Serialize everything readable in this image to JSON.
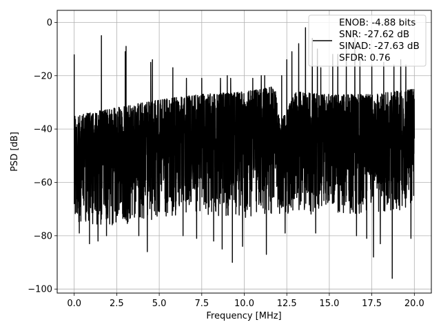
{
  "chart_data": {
    "type": "line",
    "title": "",
    "xlabel": "Frequency [MHz]",
    "ylabel": "PSD [dB]",
    "xlim": [
      -1.0,
      21.0
    ],
    "ylim": [
      -101.5,
      4.5
    ],
    "x_ticks": [
      0.0,
      2.5,
      5.0,
      7.5,
      10.0,
      12.5,
      15.0,
      17.5,
      20.0
    ],
    "x_tick_labels": [
      "0.0",
      "2.5",
      "5.0",
      "7.5",
      "10.0",
      "12.5",
      "15.0",
      "17.5",
      "20.0"
    ],
    "y_ticks": [
      0,
      -20,
      -40,
      -60,
      -80,
      -100
    ],
    "y_tick_labels": [
      "0",
      "−20",
      "−40",
      "−60",
      "−80",
      "−100"
    ],
    "grid": true,
    "legend_position": "top-right",
    "line_color": "#000000",
    "series": [
      {
        "name": "ENOB: -4.88 bits\nSNR: -27.62 dB\nSINAD: -27.63 dB\nSFDR: 0.76",
        "description_of_trace": "dense noisy PSD",
        "noise_ceiling_points": [
          [
            0.0,
            -35
          ],
          [
            2.5,
            -32
          ],
          [
            5.0,
            -29
          ],
          [
            7.5,
            -27
          ],
          [
            10.0,
            -26
          ],
          [
            11.8,
            -24
          ],
          [
            12.1,
            -38
          ],
          [
            13.0,
            -26
          ],
          [
            15.0,
            -27
          ],
          [
            17.5,
            -27
          ],
          [
            20.0,
            -25
          ]
        ],
        "noise_floor_points": [
          [
            0.0,
            -72
          ],
          [
            2.5,
            -72
          ],
          [
            5.0,
            -70
          ],
          [
            7.5,
            -68
          ],
          [
            10.0,
            -70
          ],
          [
            12.5,
            -68
          ],
          [
            15.0,
            -68
          ],
          [
            17.5,
            -68
          ],
          [
            20.0,
            -66
          ]
        ],
        "dips": [
          [
            0.3,
            -79
          ],
          [
            0.9,
            -83
          ],
          [
            1.4,
            -82
          ],
          [
            1.9,
            -80
          ],
          [
            3.0,
            -80
          ],
          [
            3.8,
            -80
          ],
          [
            4.3,
            -86
          ],
          [
            6.4,
            -80
          ],
          [
            7.2,
            -81
          ],
          [
            8.2,
            -82
          ],
          [
            8.7,
            -85
          ],
          [
            9.3,
            -90
          ],
          [
            9.9,
            -84
          ],
          [
            11.3,
            -87
          ],
          [
            12.4,
            -79
          ],
          [
            13.2,
            -81
          ],
          [
            14.2,
            -79
          ],
          [
            14.5,
            -81
          ],
          [
            16.6,
            -80
          ],
          [
            17.2,
            -81
          ],
          [
            17.6,
            -88
          ],
          [
            18.0,
            -83
          ],
          [
            18.7,
            -96
          ],
          [
            19.2,
            -80
          ],
          [
            19.8,
            -81
          ]
        ],
        "peaks": [
          [
            0.0,
            -12
          ],
          [
            1.6,
            -5
          ],
          [
            3.0,
            -11
          ],
          [
            3.05,
            -9
          ],
          [
            4.5,
            -15
          ],
          [
            4.6,
            -14
          ],
          [
            5.8,
            -17
          ],
          [
            6.6,
            -21
          ],
          [
            7.5,
            -21
          ],
          [
            8.6,
            -21
          ],
          [
            9.0,
            -20
          ],
          [
            9.2,
            -21
          ],
          [
            10.5,
            -21
          ],
          [
            11.0,
            -20
          ],
          [
            11.2,
            -20
          ],
          [
            12.2,
            -20
          ],
          [
            12.5,
            -14
          ],
          [
            12.8,
            -11
          ],
          [
            13.2,
            -8
          ],
          [
            13.6,
            -2
          ],
          [
            14.0,
            -6
          ],
          [
            14.3,
            -10
          ],
          [
            14.5,
            -17
          ],
          [
            15.2,
            -12
          ],
          [
            15.5,
            -12
          ],
          [
            16.0,
            -8
          ],
          [
            16.5,
            -6
          ],
          [
            16.8,
            -13
          ],
          [
            17.5,
            -16
          ],
          [
            18.2,
            -15
          ],
          [
            18.8,
            -16
          ],
          [
            19.2,
            -14
          ],
          [
            19.5,
            -16
          ]
        ]
      }
    ]
  }
}
